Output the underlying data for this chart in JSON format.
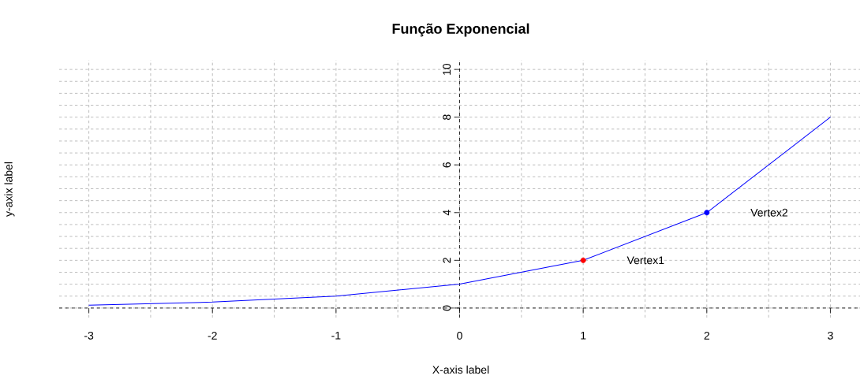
{
  "chart_data": {
    "type": "line",
    "title": "Função Exponencial",
    "xlabel": "X-axis label",
    "ylabel": "y-axix label",
    "xlim": [
      -3.24,
      3.24
    ],
    "ylim": [
      -0.4,
      10.4
    ],
    "xticks": [
      -3,
      -2,
      -1,
      0,
      1,
      2,
      3
    ],
    "yticks": [
      0,
      2,
      4,
      6,
      8,
      10
    ],
    "grid": true,
    "series": [
      {
        "color": "#0000ff",
        "x": [
          -3,
          -2,
          -1,
          0,
          1,
          2,
          3
        ],
        "values": [
          0.12,
          0.25,
          0.5,
          1,
          2,
          4,
          8
        ]
      },
      {
        "type": "scatter",
        "color": "#ff0000",
        "marker": "circle",
        "x": [
          1
        ],
        "values": [
          2
        ]
      },
      {
        "type": "scatter",
        "color": "#0000ff",
        "marker": "circle",
        "x": [
          2
        ],
        "values": [
          4
        ]
      }
    ],
    "annotations": [
      "Vertex1",
      "Vertex2"
    ]
  }
}
